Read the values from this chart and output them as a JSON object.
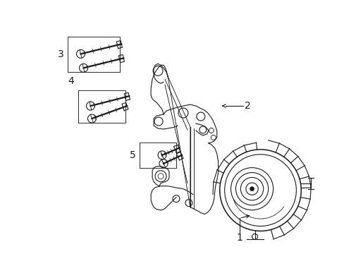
{
  "bg_color": "#ffffff",
  "line_color": "#1a1a1a",
  "fig_width": 4.89,
  "fig_height": 3.6,
  "dpi": 100,
  "label_fs": 9,
  "lw": 0.8
}
